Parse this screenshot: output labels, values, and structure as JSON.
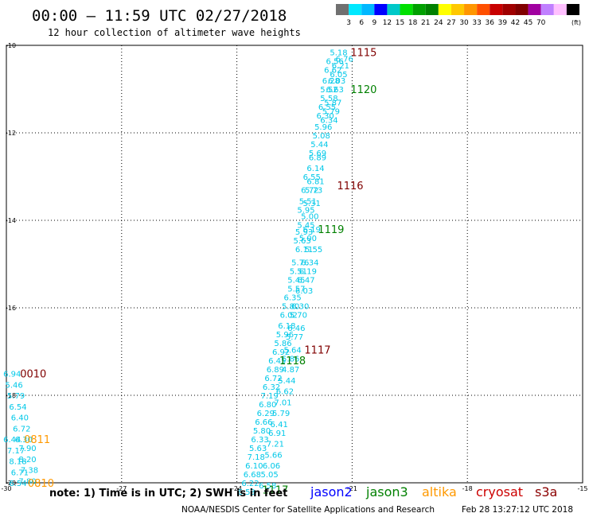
{
  "header": {
    "title": "00:00 – 11:59 UTC 02/27/2018",
    "subtitle": "12 hour collection of altimeter wave heights"
  },
  "colorbar": {
    "colors": [
      "#707070",
      "#00e8ff",
      "#00b8ff",
      "#0000ff",
      "#00c8c8",
      "#00e000",
      "#00a000",
      "#008000",
      "#ffff00",
      "#ffc800",
      "#ff9600",
      "#ff5000",
      "#c80000",
      "#a00000",
      "#800000",
      "#a000a0",
      "#c080ff",
      "#ffc0ff",
      "#000000"
    ],
    "labels": [
      "3",
      "6",
      "9",
      "12",
      "15",
      "18",
      "21",
      "24",
      "27",
      "30",
      "33",
      "36",
      "39",
      "42",
      "45",
      "70"
    ],
    "unit": "(ft)"
  },
  "footer": {
    "note": "note: 1) Time is in UTC; 2) SWH is in feet",
    "credit": "NOAA/NESDIS Center for Satellite Applications and Research",
    "timestamp": "Feb 28 13:27:12 UTC 2018"
  },
  "legend": [
    {
      "label": "jason2",
      "color": "#0000ff"
    },
    {
      "label": "jason3",
      "color": "#008000"
    },
    {
      "label": "altika",
      "color": "#ff9900"
    },
    {
      "label": "cryosat",
      "color": "#cc0000"
    },
    {
      "label": "s3a",
      "color": "#8b0000"
    }
  ],
  "chart_data": {
    "type": "scatter",
    "title": "00:00 – 11:59 UTC 02/27/2018",
    "xlim": [
      -30,
      -15
    ],
    "ylim": [
      -20,
      -10
    ],
    "xticks": [
      "-30",
      "-27",
      "-24",
      "-21",
      "-18",
      "-15"
    ],
    "yticks": [
      "-10",
      "-12",
      "-14",
      "-16",
      "-18",
      "-20"
    ],
    "grid": true,
    "point_color": "#00c8e8",
    "points": [
      {
        "x": -21.35,
        "y": -10.15,
        "v": "5.18"
      },
      {
        "x": -21.2,
        "y": -10.3,
        "v": "6.76"
      },
      {
        "x": -21.45,
        "y": -10.35,
        "v": "6.56"
      },
      {
        "x": -21.3,
        "y": -10.45,
        "v": "6.21"
      },
      {
        "x": -21.5,
        "y": -10.55,
        "v": "6.62"
      },
      {
        "x": -21.35,
        "y": -10.65,
        "v": "6.05"
      },
      {
        "x": -21.55,
        "y": -10.8,
        "v": "6.28"
      },
      {
        "x": -21.4,
        "y": -10.8,
        "v": "6.03"
      },
      {
        "x": -21.6,
        "y": -11.0,
        "v": "5.52"
      },
      {
        "x": -21.45,
        "y": -11.0,
        "v": "6.63"
      },
      {
        "x": -21.6,
        "y": -11.2,
        "v": "5.58"
      },
      {
        "x": -21.5,
        "y": -11.3,
        "v": "5.87"
      },
      {
        "x": -21.65,
        "y": -11.4,
        "v": "6.55"
      },
      {
        "x": -21.55,
        "y": -11.5,
        "v": "5.79"
      },
      {
        "x": -21.7,
        "y": -11.6,
        "v": "6.30"
      },
      {
        "x": -21.6,
        "y": -11.7,
        "v": "6.34"
      },
      {
        "x": -21.75,
        "y": -11.85,
        "v": "5.96"
      },
      {
        "x": -21.8,
        "y": -12.05,
        "v": "5.08"
      },
      {
        "x": -21.85,
        "y": -12.25,
        "v": "5.44"
      },
      {
        "x": -21.9,
        "y": -12.45,
        "v": "5.69"
      },
      {
        "x": -21.9,
        "y": -12.55,
        "v": "6.89"
      },
      {
        "x": -21.95,
        "y": -12.8,
        "v": "6.14"
      },
      {
        "x": -22.05,
        "y": -13.0,
        "v": "6.55"
      },
      {
        "x": -21.95,
        "y": -13.1,
        "v": "6.81"
      },
      {
        "x": -22.1,
        "y": -13.3,
        "v": "6.72"
      },
      {
        "x": -22.0,
        "y": -13.3,
        "v": "5.73"
      },
      {
        "x": -22.15,
        "y": -13.55,
        "v": "5.51"
      },
      {
        "x": -22.05,
        "y": -13.6,
        "v": "5.31"
      },
      {
        "x": -22.2,
        "y": -13.75,
        "v": "5.95"
      },
      {
        "x": -22.1,
        "y": -13.9,
        "v": "5.00"
      },
      {
        "x": -22.2,
        "y": -14.1,
        "v": "5.45"
      },
      {
        "x": -22.05,
        "y": -14.2,
        "v": "6.19"
      },
      {
        "x": -22.25,
        "y": -14.25,
        "v": "5.93"
      },
      {
        "x": -22.15,
        "y": -14.4,
        "v": "5.00"
      },
      {
        "x": -22.3,
        "y": -14.45,
        "v": "5.63"
      },
      {
        "x": -22.25,
        "y": -14.65,
        "v": "6.11"
      },
      {
        "x": -22.0,
        "y": -14.65,
        "v": "5.55"
      },
      {
        "x": -22.35,
        "y": -14.95,
        "v": "5.76"
      },
      {
        "x": -22.1,
        "y": -14.95,
        "v": "6.34"
      },
      {
        "x": -22.4,
        "y": -15.15,
        "v": "5.51"
      },
      {
        "x": -22.15,
        "y": -15.15,
        "v": "6.19"
      },
      {
        "x": -22.45,
        "y": -15.35,
        "v": "5.45"
      },
      {
        "x": -22.2,
        "y": -15.35,
        "v": "6.47"
      },
      {
        "x": -22.45,
        "y": -15.55,
        "v": "5.57"
      },
      {
        "x": -22.25,
        "y": -15.6,
        "v": "6.03"
      },
      {
        "x": -22.55,
        "y": -15.75,
        "v": "6.35"
      },
      {
        "x": -22.6,
        "y": -15.95,
        "v": "5.80"
      },
      {
        "x": -22.35,
        "y": -15.95,
        "v": "6.30"
      },
      {
        "x": -22.65,
        "y": -16.15,
        "v": "6.02"
      },
      {
        "x": -22.4,
        "y": -16.15,
        "v": "5.70"
      },
      {
        "x": -22.7,
        "y": -16.4,
        "v": "6.18"
      },
      {
        "x": -22.45,
        "y": -16.45,
        "v": "6.46"
      },
      {
        "x": -22.75,
        "y": -16.6,
        "v": "5.96"
      },
      {
        "x": -22.5,
        "y": -16.65,
        "v": "5.77"
      },
      {
        "x": -22.8,
        "y": -16.8,
        "v": "5.86"
      },
      {
        "x": -22.55,
        "y": -16.95,
        "v": "5.64"
      },
      {
        "x": -22.85,
        "y": -17.0,
        "v": "6.92"
      },
      {
        "x": -22.6,
        "y": -17.15,
        "v": "5.86"
      },
      {
        "x": -22.95,
        "y": -17.2,
        "v": "6.45"
      },
      {
        "x": -22.6,
        "y": -17.4,
        "v": "4.87"
      },
      {
        "x": -23.0,
        "y": -17.4,
        "v": "6.89"
      },
      {
        "x": -23.05,
        "y": -17.6,
        "v": "6.72"
      },
      {
        "x": -22.7,
        "y": -17.65,
        "v": "5.44"
      },
      {
        "x": -23.1,
        "y": -17.8,
        "v": "6.32"
      },
      {
        "x": -22.75,
        "y": -17.9,
        "v": "6.62"
      },
      {
        "x": -23.15,
        "y": -18.0,
        "v": "7.19"
      },
      {
        "x": -22.8,
        "y": -18.15,
        "v": "7.01"
      },
      {
        "x": -23.2,
        "y": -18.2,
        "v": "6.80"
      },
      {
        "x": -23.25,
        "y": -18.4,
        "v": "6.29"
      },
      {
        "x": -22.85,
        "y": -18.4,
        "v": "5.79"
      },
      {
        "x": -23.3,
        "y": -18.6,
        "v": "6.66"
      },
      {
        "x": -22.9,
        "y": -18.65,
        "v": "6.41"
      },
      {
        "x": -23.35,
        "y": -18.8,
        "v": "5.80"
      },
      {
        "x": -22.95,
        "y": -18.85,
        "v": "6.91"
      },
      {
        "x": -23.4,
        "y": -19.0,
        "v": "6.33"
      },
      {
        "x": -23.0,
        "y": -19.1,
        "v": "7.21"
      },
      {
        "x": -23.45,
        "y": -19.2,
        "v": "5.63"
      },
      {
        "x": -23.05,
        "y": -19.35,
        "v": "5.66"
      },
      {
        "x": -23.5,
        "y": -19.4,
        "v": "7.18"
      },
      {
        "x": -23.1,
        "y": -19.6,
        "v": "6.06"
      },
      {
        "x": -23.55,
        "y": -19.6,
        "v": "6.10"
      },
      {
        "x": -23.6,
        "y": -19.8,
        "v": "6.68"
      },
      {
        "x": -23.15,
        "y": -19.8,
        "v": "5.05"
      },
      {
        "x": -23.65,
        "y": -20.0,
        "v": "6.22"
      },
      {
        "x": -23.2,
        "y": -20.05,
        "v": "6.58"
      },
      {
        "x": -23.75,
        "y": -20.2,
        "v": "6.53"
      },
      {
        "x": -29.85,
        "y": -17.5,
        "v": "6.94"
      },
      {
        "x": -29.8,
        "y": -17.75,
        "v": "5.46"
      },
      {
        "x": -29.75,
        "y": -18.0,
        "v": "5.79"
      },
      {
        "x": -29.7,
        "y": -18.25,
        "v": "6.54"
      },
      {
        "x": -29.65,
        "y": -18.5,
        "v": "6.40"
      },
      {
        "x": -29.6,
        "y": -18.75,
        "v": "6.72"
      },
      {
        "x": -29.85,
        "y": -19.0,
        "v": "6.44"
      },
      {
        "x": -29.55,
        "y": -19.0,
        "v": "6.30"
      },
      {
        "x": -29.45,
        "y": -19.2,
        "v": "7.90"
      },
      {
        "x": -29.75,
        "y": -19.25,
        "v": "7.17"
      },
      {
        "x": -29.45,
        "y": -19.45,
        "v": "8.20"
      },
      {
        "x": -29.7,
        "y": -19.5,
        "v": "8.18"
      },
      {
        "x": -29.4,
        "y": -19.7,
        "v": "7.38"
      },
      {
        "x": -29.65,
        "y": -19.75,
        "v": "6.71"
      },
      {
        "x": -29.45,
        "y": -19.95,
        "v": "7.80"
      },
      {
        "x": -29.7,
        "y": -20.0,
        "v": "6.54"
      }
    ],
    "time_labels": [
      {
        "x": -20.7,
        "y": -10.15,
        "v": "1115",
        "color": "#800000"
      },
      {
        "x": -20.7,
        "y": -11.0,
        "v": "1120",
        "color": "#008000"
      },
      {
        "x": -21.05,
        "y": -13.2,
        "v": "1116",
        "color": "#800000"
      },
      {
        "x": -21.55,
        "y": -14.2,
        "v": "1119",
        "color": "#008000"
      },
      {
        "x": -21.9,
        "y": -16.95,
        "v": "1117",
        "color": "#800000"
      },
      {
        "x": -22.55,
        "y": -17.2,
        "v": "1118",
        "color": "#008000"
      },
      {
        "x": -29.3,
        "y": -17.5,
        "v": "0010",
        "color": "#800000"
      },
      {
        "x": -29.2,
        "y": -19.0,
        "v": "0811",
        "color": "#ff9900"
      },
      {
        "x": -29.1,
        "y": -20.0,
        "v": "0810",
        "color": "#ff9900"
      },
      {
        "x": -23.0,
        "y": -20.15,
        "v": "1117",
        "color": "#008000"
      }
    ]
  }
}
